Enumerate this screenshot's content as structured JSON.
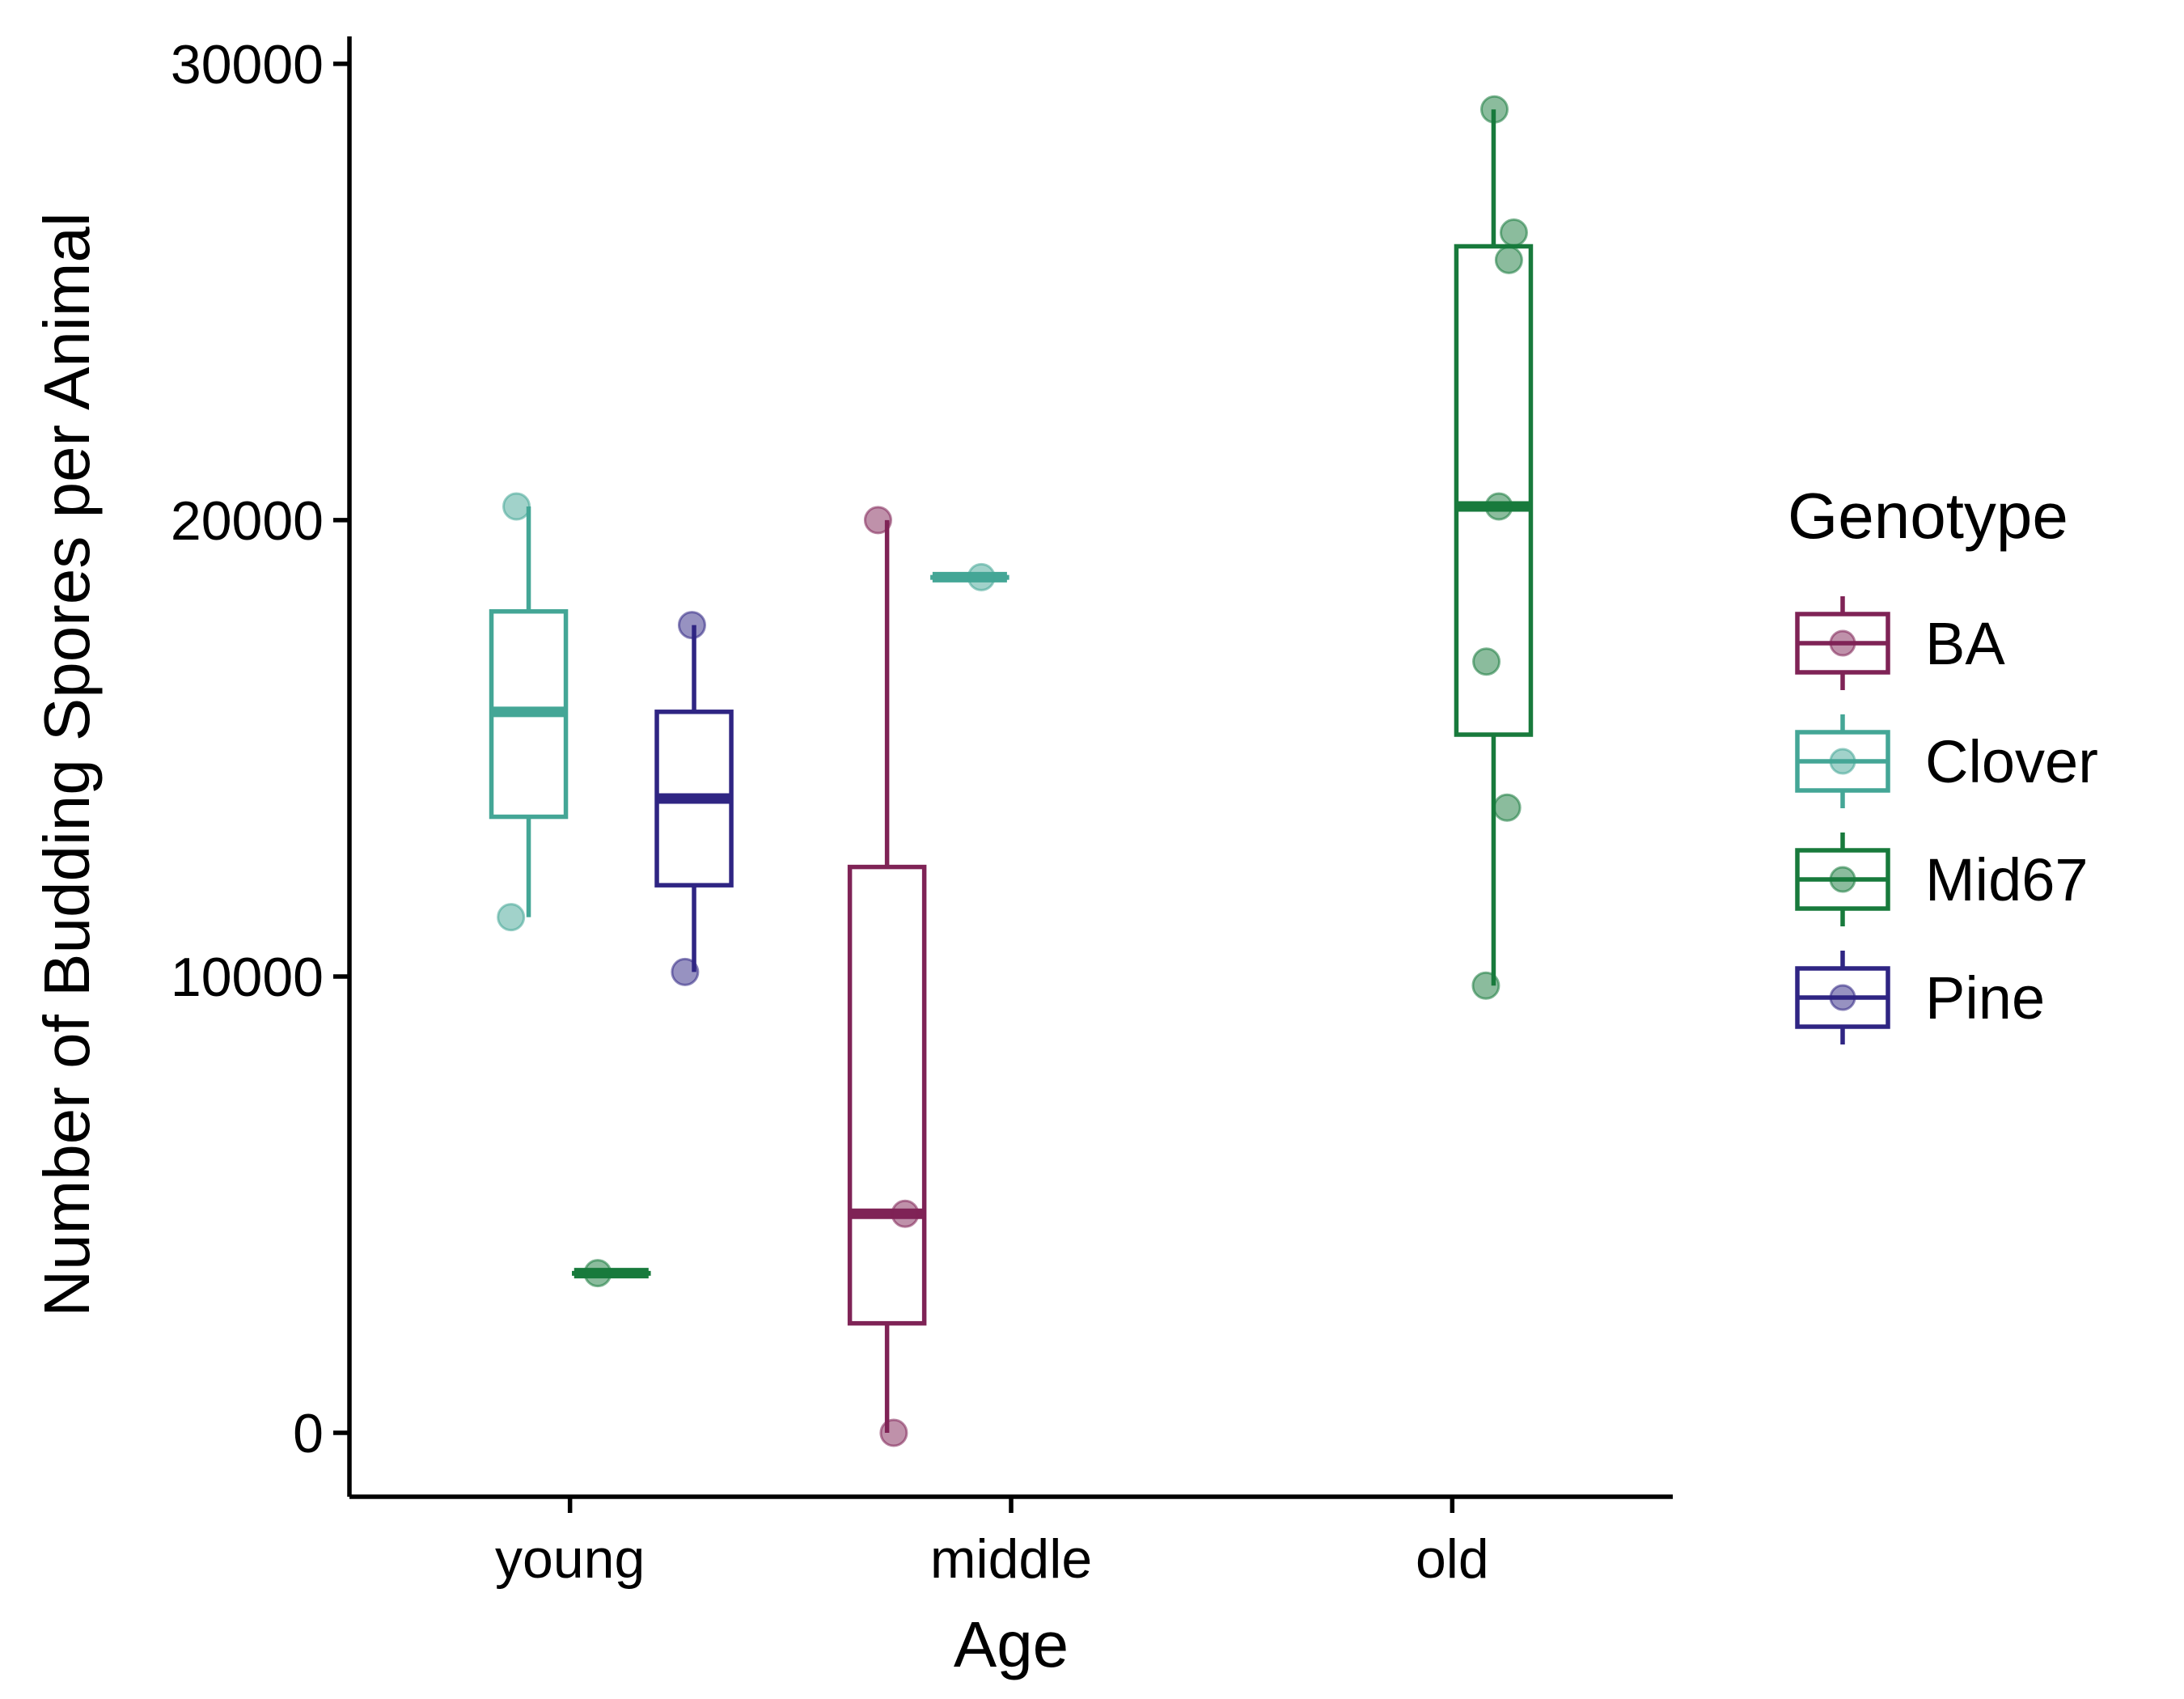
{
  "chart_data": {
    "type": "box",
    "xlabel": "Age",
    "ylabel": "Number of Budding Spores per Animal",
    "categories": [
      "young",
      "middle",
      "old"
    ],
    "ylim": [
      -1400,
      30600
    ],
    "yticks": [
      0,
      10000,
      20000,
      30000
    ],
    "grid": false,
    "legend": {
      "title": "Genotype",
      "placement": "right"
    },
    "series": [
      {
        "name": "BA",
        "color": "#7f2356",
        "boxes": [
          {
            "category": "middle",
            "min": 0,
            "q1": 2400,
            "median": 4800,
            "q3": 12400,
            "max": 20000,
            "points": [
              0,
              4800,
              20000
            ]
          }
        ]
      },
      {
        "name": "Clover",
        "color": "#44a696",
        "boxes": [
          {
            "category": "young",
            "min": 11300,
            "q1": 13500,
            "median": 15800,
            "q3": 18000,
            "max": 20300,
            "points": [
              11300,
              20300
            ]
          },
          {
            "category": "middle",
            "min": 18750,
            "q1": 18750,
            "median": 18750,
            "q3": 18750,
            "max": 18750,
            "points": [
              18750
            ]
          }
        ]
      },
      {
        "name": "Mid67",
        "color": "#187a3c",
        "boxes": [
          {
            "category": "young",
            "min": 3500,
            "q1": 3500,
            "median": 3500,
            "q3": 3500,
            "max": 3500,
            "points": [
              3500
            ]
          },
          {
            "category": "old",
            "min": 9800,
            "q1": 15300,
            "median": 20300,
            "q3": 26000,
            "max": 29000,
            "points": [
              9800,
              13700,
              16900,
              20300,
              25700,
              26300,
              29000
            ]
          }
        ]
      },
      {
        "name": "Pine",
        "color": "#2f2583",
        "boxes": [
          {
            "category": "young",
            "min": 10100,
            "q1": 12000,
            "median": 13900,
            "q3": 15800,
            "max": 17700,
            "points": [
              10100,
              17700
            ]
          }
        ]
      }
    ]
  }
}
